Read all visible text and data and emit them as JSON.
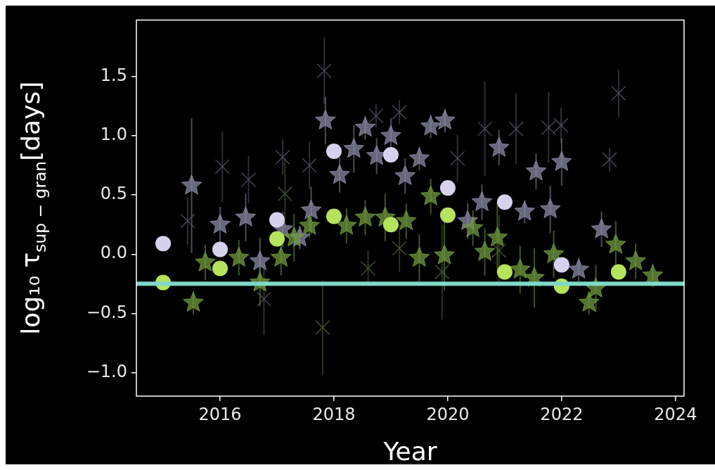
{
  "chart_data": {
    "type": "scatter",
    "xlabel": "Year",
    "ylabel": "log₁₀ τ$_{sup − gran}$[days]",
    "xlim": [
      2014.53,
      2024.15
    ],
    "ylim": [
      -1.2,
      1.98
    ],
    "xticks": [
      2016,
      2018,
      2020,
      2022,
      2024
    ],
    "yticks": [
      {
        "value": -1,
        "label": "−1.0"
      },
      {
        "value": -0.5,
        "label": "−0.5"
      },
      {
        "value": 0,
        "label": "0.0"
      },
      {
        "value": 0.5,
        "label": "0.5"
      },
      {
        "value": 1,
        "label": "1.0"
      },
      {
        "value": 1.5,
        "label": "1.5"
      }
    ],
    "grid": false,
    "legend": false,
    "ref_lines": [
      {
        "axis": "y",
        "value": -0.25,
        "color": "#7fd8c8"
      }
    ],
    "series": [
      {
        "marker": "cross",
        "color": "#55556a",
        "x": [
          2015.43,
          2016.04,
          2016.5,
          2017.1,
          2017.57,
          2017.83,
          2018.74,
          2019.15,
          2020.17,
          2020.65,
          2021.2,
          2021.77,
          2021.99,
          2022.84,
          2023.0,
          2016.77
        ],
        "values": [
          0.28,
          0.74,
          0.63,
          0.82,
          0.75,
          1.55,
          1.17,
          1.2,
          0.81,
          1.06,
          1.06,
          1.07,
          1.09,
          0.8,
          1.36,
          -0.38
        ],
        "errors": [
          0.2,
          0.3,
          0.2,
          0.15,
          0.2,
          0.28,
          0.1,
          0.1,
          0.2,
          0.4,
          0.3,
          0.3,
          0.15,
          0.1,
          0.2,
          0.3
        ]
      },
      {
        "marker": "cross",
        "color": "#4e6032",
        "x": [
          2017.8,
          2017.14,
          2018.6,
          2019.15,
          2019.9,
          2020.9
        ],
        "values": [
          -0.62,
          0.51,
          -0.12,
          0.05,
          -0.15,
          0.03
        ],
        "errors": [
          0.4,
          0.3,
          0.15,
          0.2,
          0.4,
          0.3
        ]
      },
      {
        "marker": "star",
        "color": "#8a8aa6",
        "x": [
          2015.5,
          2016.0,
          2016.45,
          2016.7,
          2017.1,
          2017.4,
          2017.6,
          2017.85,
          2018.1,
          2018.35,
          2018.55,
          2018.75,
          2019.0,
          2019.25,
          2019.5,
          2019.7,
          2019.95,
          2020.35,
          2020.6,
          2020.9,
          2021.35,
          2021.55,
          2021.8,
          2022.0,
          2022.3,
          2022.7
        ],
        "values": [
          0.58,
          0.25,
          0.31,
          -0.06,
          0.21,
          0.14,
          0.37,
          1.13,
          0.67,
          0.89,
          1.07,
          0.83,
          1.0,
          0.66,
          0.81,
          1.08,
          1.13,
          0.28,
          0.44,
          0.9,
          0.36,
          0.7,
          0.38,
          0.78,
          -0.13,
          0.21
        ],
        "errors": [
          0.57,
          0.15,
          0.2,
          0.2,
          0.15,
          0.1,
          0.2,
          0.2,
          0.15,
          0.2,
          0.1,
          0.15,
          0.15,
          0.15,
          0.1,
          0.1,
          0.1,
          0.15,
          0.15,
          0.15,
          0.1,
          0.15,
          0.2,
          0.2,
          0.1,
          0.15
        ]
      },
      {
        "marker": "star",
        "color": "#6f9a3e",
        "x": [
          2015.53,
          2015.74,
          2016.33,
          2016.7,
          2017.07,
          2017.3,
          2017.57,
          2018.22,
          2018.55,
          2018.9,
          2019.27,
          2019.5,
          2019.7,
          2019.94,
          2020.44,
          2020.65,
          2020.87,
          2021.27,
          2021.52,
          2021.86,
          2022.6,
          2022.48,
          2022.95,
          2023.3,
          2023.6
        ],
        "values": [
          -0.41,
          -0.07,
          -0.03,
          -0.24,
          -0.03,
          0.14,
          0.24,
          0.24,
          0.31,
          0.31,
          0.28,
          -0.03,
          0.49,
          -0.01,
          0.22,
          0.02,
          0.14,
          -0.13,
          -0.2,
          0.0,
          -0.29,
          -0.41,
          0.08,
          -0.06,
          -0.18
        ],
        "errors": [
          0.1,
          0.15,
          0.15,
          0.2,
          0.15,
          0.2,
          0.1,
          0.15,
          0.15,
          0.2,
          0.15,
          0.2,
          0.15,
          0.3,
          0.15,
          0.2,
          0.3,
          0.2,
          0.25,
          0.2,
          0.2,
          0.1,
          0.2,
          0.15,
          0.1
        ]
      },
      {
        "marker": "circle",
        "color": "#d6d2ee",
        "x": [
          2015,
          2016,
          2017,
          2018,
          2019,
          2020,
          2021,
          2022
        ],
        "values": [
          0.09,
          0.04,
          0.29,
          0.87,
          0.84,
          0.56,
          0.44,
          -0.09
        ]
      },
      {
        "marker": "circle",
        "color": "#b5e35c",
        "x": [
          2015,
          2016,
          2017,
          2018,
          2019,
          2020,
          2021,
          2022,
          2023
        ],
        "values": [
          -0.24,
          -0.12,
          0.13,
          0.32,
          0.25,
          0.33,
          -0.15,
          -0.27,
          -0.15
        ]
      }
    ]
  }
}
